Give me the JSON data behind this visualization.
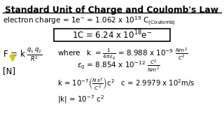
{
  "title": "Standard Unit of Charge and Coulomb's Law",
  "bg_color": "#ffffff",
  "text_color": "#000000",
  "arrow_color": "#cccc00"
}
